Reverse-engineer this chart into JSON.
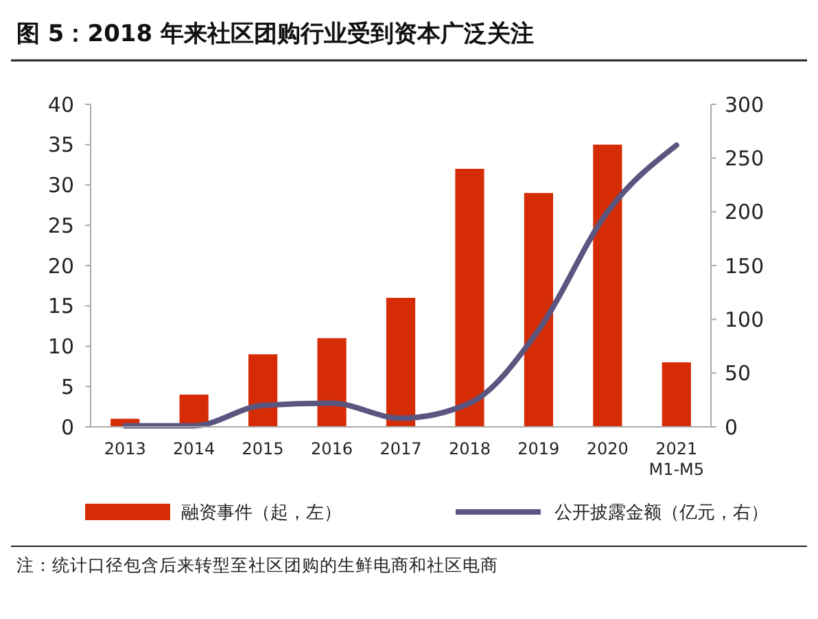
{
  "chart_data": {
    "type": "bar",
    "title": "图 5：2018 年来社区团购行业受到资本广泛关注",
    "categories": [
      "2013",
      "2014",
      "2015",
      "2016",
      "2017",
      "2018",
      "2019",
      "2020",
      "2021 M1-M5"
    ],
    "series": [
      {
        "name": "融资事件（起，左）",
        "color": "#d62c06",
        "values": [
          1,
          4,
          9,
          11,
          16,
          32,
          29,
          35,
          8
        ]
      },
      {
        "name": "公开披露金额（亿元，右）",
        "type": "line",
        "axis": "y2",
        "color": "#5b5680",
        "values": [
          1,
          1,
          20,
          22,
          8,
          22,
          90,
          200,
          262
        ]
      }
    ],
    "ylim": [
      0,
      40
    ],
    "yticks": [
      0,
      5,
      10,
      15,
      20,
      25,
      30,
      35,
      40
    ],
    "y2lim": [
      0,
      300
    ],
    "y2ticks": [
      0,
      50,
      100,
      150,
      200,
      250,
      300
    ],
    "grid": false,
    "legend": "bottom",
    "marker": "none",
    "line_style": "solid",
    "annotations": [
      "注：统计口径包含后来转型至社区团购的生鲜电商和社区电商"
    ]
  }
}
